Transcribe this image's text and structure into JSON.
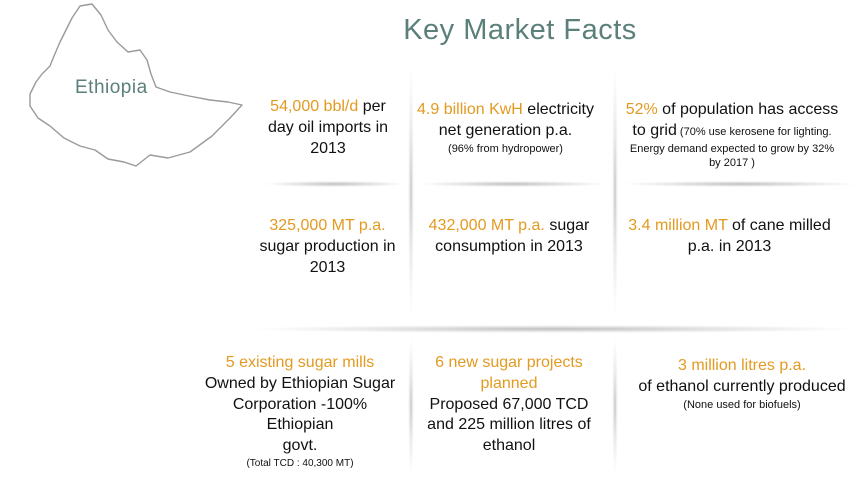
{
  "map": {
    "country": "Ethiopia",
    "icon": "ethiopia-map-outline"
  },
  "title": "Key Market Facts",
  "facts": {
    "oil": {
      "accent": "54,000 bbl/d",
      "text1": " per",
      "text2": "day oil imports in",
      "text3": "2013"
    },
    "electricity": {
      "accent": "4.9 billion KwH",
      "text1": " electricity",
      "text2": "net generation p.a.",
      "note": "(96% from hydropower)"
    },
    "grid": {
      "accent": "52%",
      "text1": " of population has access",
      "text2": "to grid",
      "note1": " (70% use kerosene for lighting.",
      "note2": "Energy demand expected to grow by 32%",
      "note3": "by 2017 )"
    },
    "sugar_production": {
      "accent": "325,000 MT p.a.",
      "text1": "sugar production in",
      "text2": "2013"
    },
    "sugar_consumption": {
      "accent": "432,000 MT p.a.",
      "text1": " sugar",
      "text2": "consumption in 2013"
    },
    "cane": {
      "accent": "3.4 million MT",
      "text1": " of cane milled",
      "text2": "p.a. in 2013"
    },
    "mills": {
      "accent": "5 existing sugar mills",
      "text1": "Owned by Ethiopian Sugar",
      "text2": "Corporation -100% Ethiopian",
      "text3": "govt.",
      "note": "(Total TCD : 40,300 MT)"
    },
    "projects": {
      "accent1": "6 new sugar projects",
      "accent2": "planned",
      "text1": "Proposed 67,000 TCD",
      "text2": "and 225 million litres of",
      "text3": "ethanol"
    },
    "ethanol": {
      "accent": "3 million litres p.a.",
      "text1": "of ethanol currently produced",
      "note": "(None used for biofuels)"
    }
  },
  "colors": {
    "accent": "#e39a21",
    "title": "#5b7f7a",
    "text": "#111111"
  }
}
